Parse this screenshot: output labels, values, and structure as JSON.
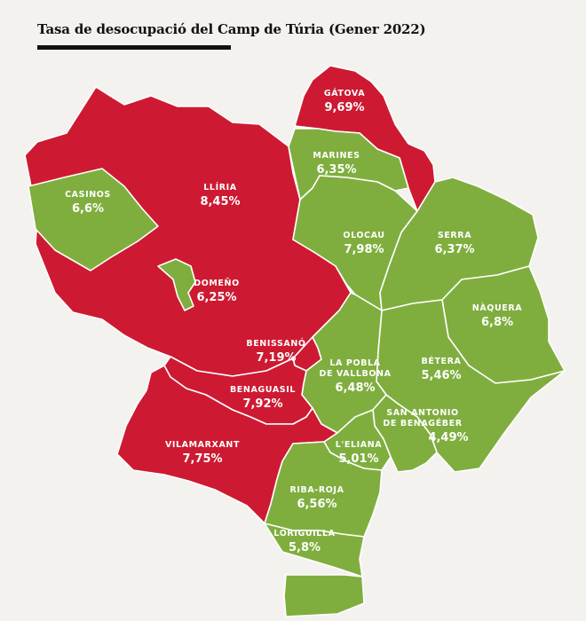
{
  "title": "Tasa de desocupació del Camp de Túria (Gener 2022)",
  "colors": {
    "high": "#cd1a32",
    "low": "#7fae3e",
    "border": "#ffffff",
    "background": "#f4f2ee",
    "text": "#ffffff"
  },
  "municipalities": [
    {
      "id": "gatova",
      "name": "GÁTOVA",
      "value": "9,69%",
      "group": "high"
    },
    {
      "id": "marines",
      "name": "MARINES",
      "value": "6,35%",
      "group": "low"
    },
    {
      "id": "casinos",
      "name": "CASINOS",
      "value": "6,6%",
      "group": "low"
    },
    {
      "id": "lliria",
      "name": "LLÍRIA",
      "value": "8,45%",
      "group": "high"
    },
    {
      "id": "olocau",
      "name": "OLOCAU",
      "value": "7,98%",
      "group": "low"
    },
    {
      "id": "serra",
      "name": "SERRA",
      "value": "6,37%",
      "group": "low"
    },
    {
      "id": "domeno",
      "name": "DOMEÑO",
      "value": "6,25%",
      "group": "low"
    },
    {
      "id": "naquera",
      "name": "NÀQUERA",
      "value": "6,8%",
      "group": "low"
    },
    {
      "id": "benissano",
      "name": "BENISSANÓ",
      "value": "7,19%",
      "group": "high"
    },
    {
      "id": "la-pobla",
      "name": "LA POBLA\nDE VALLBONA",
      "value": "6,48%",
      "group": "low"
    },
    {
      "id": "betera",
      "name": "BÉTERA",
      "value": "5,46%",
      "group": "low"
    },
    {
      "id": "benaguasil",
      "name": "BENAGUASIL",
      "value": "7,92%",
      "group": "high"
    },
    {
      "id": "san-antonio",
      "name": "SAN ANTONIO\nDE BENAGÉBER",
      "value": "4,49%",
      "group": "low"
    },
    {
      "id": "vilamarxant",
      "name": "VILAMARXANT",
      "value": "7,75%",
      "group": "high"
    },
    {
      "id": "leliana",
      "name": "L'ELIANA",
      "value": "5,01%",
      "group": "low"
    },
    {
      "id": "riba-roja",
      "name": "RIBA-ROJA",
      "value": "6,56%",
      "group": "low"
    },
    {
      "id": "loriguilla",
      "name": "LORIGUILLA",
      "value": "5,8%",
      "group": "low"
    }
  ]
}
